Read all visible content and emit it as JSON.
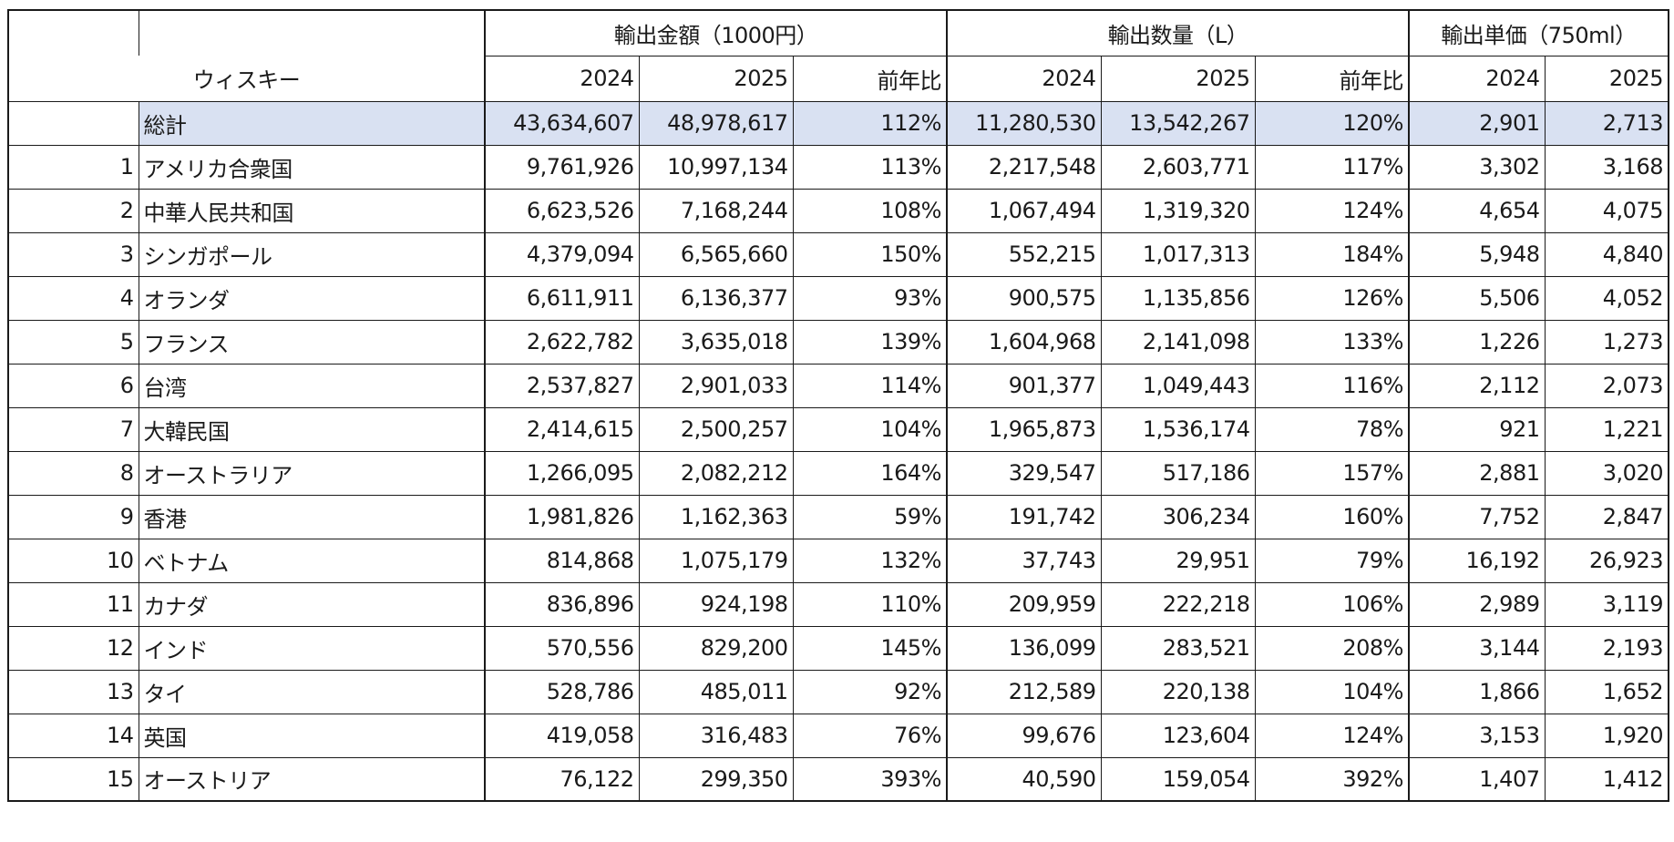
{
  "table": {
    "corner_label": "ウィスキー",
    "groups": [
      {
        "label": "輸出金額（1000円）"
      },
      {
        "label": "輸出数量（L）"
      },
      {
        "label": "輸出単価（750ml）"
      }
    ],
    "sub_headers": [
      "2024",
      "2025",
      "前年比",
      "2024",
      "2025",
      "前年比",
      "2024",
      "2025"
    ],
    "total": {
      "label": "総計",
      "values": [
        "43,634,607",
        "48,978,617",
        "112%",
        "11,280,530",
        "13,542,267",
        "120%",
        "2,901",
        "2,713"
      ]
    },
    "rows": [
      {
        "rank": "1",
        "country": "アメリカ合衆国",
        "values": [
          "9,761,926",
          "10,997,134",
          "113%",
          "2,217,548",
          "2,603,771",
          "117%",
          "3,302",
          "3,168"
        ]
      },
      {
        "rank": "2",
        "country": "中華人民共和国",
        "values": [
          "6,623,526",
          "7,168,244",
          "108%",
          "1,067,494",
          "1,319,320",
          "124%",
          "4,654",
          "4,075"
        ]
      },
      {
        "rank": "3",
        "country": "シンガポール",
        "values": [
          "4,379,094",
          "6,565,660",
          "150%",
          "552,215",
          "1,017,313",
          "184%",
          "5,948",
          "4,840"
        ]
      },
      {
        "rank": "4",
        "country": "オランダ",
        "values": [
          "6,611,911",
          "6,136,377",
          "93%",
          "900,575",
          "1,135,856",
          "126%",
          "5,506",
          "4,052"
        ]
      },
      {
        "rank": "5",
        "country": "フランス",
        "values": [
          "2,622,782",
          "3,635,018",
          "139%",
          "1,604,968",
          "2,141,098",
          "133%",
          "1,226",
          "1,273"
        ]
      },
      {
        "rank": "6",
        "country": "台湾",
        "values": [
          "2,537,827",
          "2,901,033",
          "114%",
          "901,377",
          "1,049,443",
          "116%",
          "2,112",
          "2,073"
        ]
      },
      {
        "rank": "7",
        "country": "大韓民国",
        "values": [
          "2,414,615",
          "2,500,257",
          "104%",
          "1,965,873",
          "1,536,174",
          "78%",
          "921",
          "1,221"
        ]
      },
      {
        "rank": "8",
        "country": "オーストラリア",
        "values": [
          "1,266,095",
          "2,082,212",
          "164%",
          "329,547",
          "517,186",
          "157%",
          "2,881",
          "3,020"
        ]
      },
      {
        "rank": "9",
        "country": "香港",
        "values": [
          "1,981,826",
          "1,162,363",
          "59%",
          "191,742",
          "306,234",
          "160%",
          "7,752",
          "2,847"
        ]
      },
      {
        "rank": "10",
        "country": "ベトナム",
        "values": [
          "814,868",
          "1,075,179",
          "132%",
          "37,743",
          "29,951",
          "79%",
          "16,192",
          "26,923"
        ]
      },
      {
        "rank": "11",
        "country": "カナダ",
        "values": [
          "836,896",
          "924,198",
          "110%",
          "209,959",
          "222,218",
          "106%",
          "2,989",
          "3,119"
        ]
      },
      {
        "rank": "12",
        "country": "インド",
        "values": [
          "570,556",
          "829,200",
          "145%",
          "136,099",
          "283,521",
          "208%",
          "3,144",
          "2,193"
        ]
      },
      {
        "rank": "13",
        "country": "タイ",
        "values": [
          "528,786",
          "485,011",
          "92%",
          "212,589",
          "220,138",
          "104%",
          "1,866",
          "1,652"
        ]
      },
      {
        "rank": "14",
        "country": "英国",
        "values": [
          "419,058",
          "316,483",
          "76%",
          "99,676",
          "123,604",
          "124%",
          "3,153",
          "1,920"
        ]
      },
      {
        "rank": "15",
        "country": "オーストリア",
        "values": [
          "76,122",
          "299,350",
          "393%",
          "40,590",
          "159,054",
          "392%",
          "1,407",
          "1,412"
        ]
      }
    ],
    "colors": {
      "total_highlight": "#d9e1f2",
      "border": "#1a1a1a"
    }
  }
}
